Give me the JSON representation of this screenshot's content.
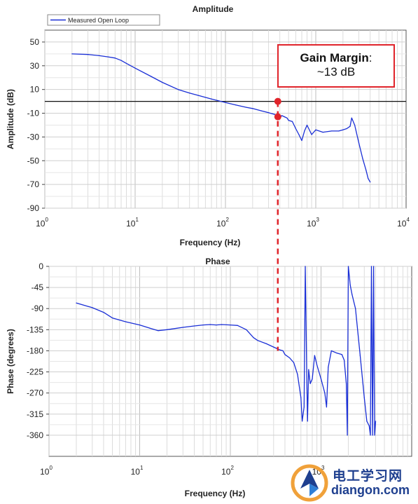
{
  "chart_data": [
    {
      "type": "line",
      "title": "Amplitude",
      "xlabel": "Frequency (Hz)",
      "ylabel": "Amplitude (dB)",
      "x_scale": "log",
      "xlim": [
        1,
        10000
      ],
      "ylim": [
        -90,
        60
      ],
      "yticks": [
        50,
        30,
        10,
        -10,
        -30,
        -50,
        -70,
        -90
      ],
      "xticks": [
        {
          "base": "10",
          "exp": "0"
        },
        {
          "base": "10",
          "exp": "1"
        },
        {
          "base": "10",
          "exp": "2"
        },
        {
          "base": "10",
          "exp": "3"
        },
        {
          "base": "10",
          "exp": "4"
        }
      ],
      "grid": true,
      "legend": {
        "position": "top-left",
        "entries": [
          "Measured Open Loop"
        ]
      },
      "reference_line_y": 0,
      "series": [
        {
          "name": "Measured Open Loop",
          "color": "#1a2fd6",
          "x": [
            2,
            3,
            4,
            5,
            6,
            7,
            8,
            10,
            15,
            20,
            30,
            40,
            50,
            70,
            100,
            130,
            170,
            200,
            250,
            300,
            350,
            380,
            400,
            420,
            450,
            480,
            500,
            550,
            600,
            650,
            700,
            750,
            800,
            900,
            1000,
            1200,
            1500,
            1800,
            2000,
            2200,
            2400,
            2500,
            2700,
            3000,
            3300,
            3600,
            3800,
            4000
          ],
          "y": [
            40,
            39.5,
            38.5,
            37.5,
            36.5,
            34.5,
            32,
            28,
            21,
            16,
            10,
            7,
            5,
            2,
            -1,
            -3,
            -5,
            -6,
            -8,
            -9.5,
            -11,
            -13,
            -14,
            -12,
            -13,
            -14,
            -16,
            -17,
            -23,
            -28,
            -33,
            -25,
            -20,
            -28,
            -24,
            -26,
            -25,
            -25,
            -24,
            -23,
            -21,
            -14,
            -20,
            -35,
            -48,
            -58,
            -65,
            -68
          ]
        }
      ],
      "annotation": {
        "line1": "Gain Margin",
        "line1_suffix": ":",
        "line2": "~13 dB"
      }
    },
    {
      "type": "line",
      "title": "Phase",
      "xlabel": "Frequency (Hz)",
      "ylabel": "Phase (degrees)",
      "x_scale": "log",
      "xlim": [
        1,
        10000
      ],
      "ylim": [
        -405,
        0
      ],
      "yticks": [
        0,
        -45,
        -90,
        -135,
        -180,
        -225,
        -270,
        -315,
        -360
      ],
      "xticks": [
        {
          "base": "10",
          "exp": "0"
        },
        {
          "base": "10",
          "exp": "1"
        },
        {
          "base": "10",
          "exp": "2"
        },
        {
          "base": "10",
          "exp": "3"
        }
      ],
      "grid": true,
      "series": [
        {
          "name": "",
          "color": "#1a2fd6",
          "x": [
            2,
            3,
            4,
            5,
            7,
            10,
            13,
            16,
            20,
            30,
            40,
            50,
            60,
            70,
            80,
            100,
            120,
            150,
            180,
            200,
            250,
            300,
            350,
            380,
            400,
            450,
            500,
            550,
            600,
            620,
            650,
            670,
            700,
            710,
            730,
            760,
            800,
            850,
            900,
            1000,
            1100,
            1150,
            1200,
            1300,
            1500,
            1700,
            1800,
            1900,
            1950,
            2000,
            2050,
            2100,
            2200,
            2400,
            2700,
            3000,
            3200,
            3400,
            3500,
            3600,
            3700,
            3800,
            3900,
            4000
          ],
          "y": [
            -78,
            -88,
            -98,
            -110,
            -118,
            -125,
            -132,
            -137,
            -135,
            -130,
            -127,
            -125,
            -124,
            -125,
            -124,
            -125,
            -126,
            -135,
            -152,
            -158,
            -165,
            -172,
            -178,
            -180,
            -188,
            -195,
            -205,
            -230,
            -280,
            -330,
            -300,
            0,
            -260,
            -330,
            -220,
            -250,
            -240,
            -190,
            -210,
            -240,
            -270,
            -300,
            -215,
            -180,
            -185,
            -188,
            -200,
            -250,
            -360,
            0,
            -20,
            -40,
            -60,
            -90,
            -190,
            -280,
            -330,
            -340,
            -360,
            0,
            -360,
            0,
            -360,
            -330
          ]
        }
      ]
    }
  ],
  "marker_color": "#e0242b",
  "watermark": {
    "cn": "电工学习网",
    "en": "diangon.com"
  }
}
